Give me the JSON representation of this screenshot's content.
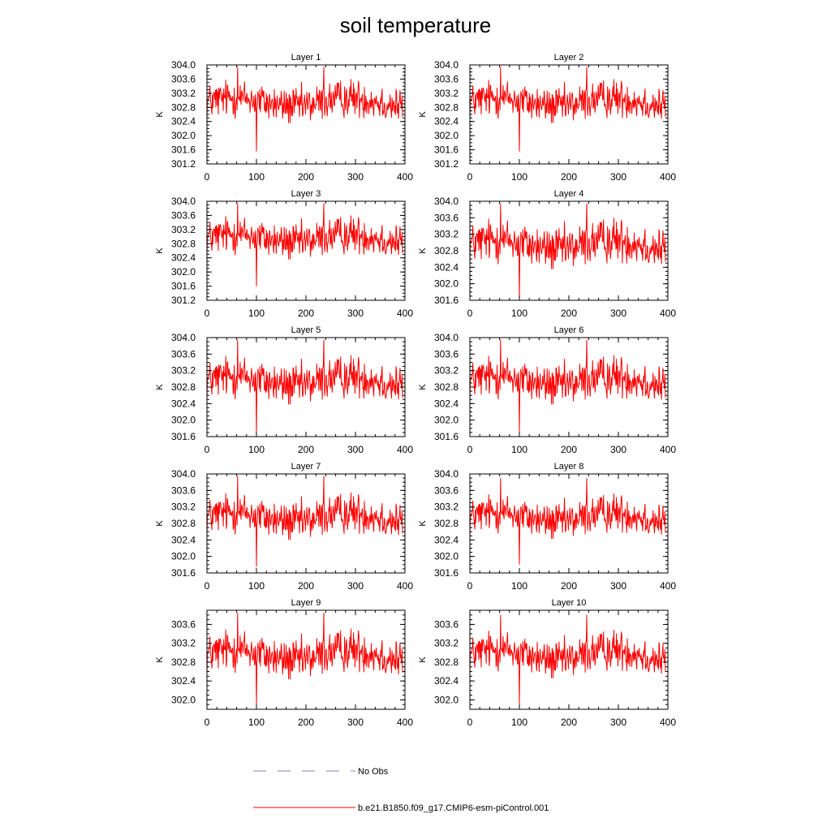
{
  "figure": {
    "title": "soil temperature",
    "legend": {
      "placement": "bottom-center",
      "entries": [
        {
          "label": "No Obs",
          "color": "#8080c0",
          "style": "dashed"
        },
        {
          "label": "b.e21.B1850.f09_g17.CMIP6-esm-piControl.001",
          "color": "#ff0000",
          "style": "solid"
        }
      ]
    }
  },
  "chart_data": [
    {
      "type": "line",
      "title": "Layer 1",
      "ylabel": "K",
      "xlim": [
        0,
        400
      ],
      "ylim": [
        301.2,
        304.0
      ],
      "xticks": [
        0,
        100,
        200,
        300,
        400
      ],
      "yticks": [
        "301.2",
        "301.6",
        "302.0",
        "302.4",
        "302.8",
        "303.2",
        "303.6",
        "304.0"
      ],
      "mean": 302.95,
      "amp": 0.42,
      "min": {
        "x": 100,
        "y": 301.55
      },
      "max": [
        {
          "x": 62,
          "y": 303.95
        },
        {
          "x": 236,
          "y": 303.95
        }
      ],
      "series": [
        {
          "name": "b.e21.B1850.f09_g17.CMIP6-esm-piControl.001",
          "color": "#ff0000"
        }
      ]
    },
    {
      "type": "line",
      "title": "Layer 2",
      "ylabel": "K",
      "xlim": [
        0,
        400
      ],
      "ylim": [
        301.2,
        304.0
      ],
      "xticks": [
        0,
        100,
        200,
        300,
        400
      ],
      "yticks": [
        "301.2",
        "301.6",
        "302.0",
        "302.4",
        "302.8",
        "303.2",
        "303.6",
        "304.0"
      ],
      "mean": 302.95,
      "amp": 0.42,
      "min": {
        "x": 100,
        "y": 301.55
      },
      "max": [
        {
          "x": 62,
          "y": 303.95
        },
        {
          "x": 236,
          "y": 303.95
        }
      ],
      "series": [
        {
          "name": "b.e21.B1850.f09_g17.CMIP6-esm-piControl.001",
          "color": "#ff0000"
        }
      ]
    },
    {
      "type": "line",
      "title": "Layer 3",
      "ylabel": "K",
      "xlim": [
        0,
        400
      ],
      "ylim": [
        301.2,
        304.0
      ],
      "xticks": [
        0,
        100,
        200,
        300,
        400
      ],
      "yticks": [
        "301.2",
        "301.6",
        "302.0",
        "302.4",
        "302.8",
        "303.2",
        "303.6",
        "304.0"
      ],
      "mean": 302.95,
      "amp": 0.42,
      "min": {
        "x": 100,
        "y": 301.6
      },
      "max": [
        {
          "x": 62,
          "y": 303.95
        },
        {
          "x": 236,
          "y": 303.95
        }
      ],
      "series": [
        {
          "name": "b.e21.B1850.f09_g17.CMIP6-esm-piControl.001",
          "color": "#ff0000"
        }
      ]
    },
    {
      "type": "line",
      "title": "Layer 4",
      "ylabel": "K",
      "xlim": [
        0,
        400
      ],
      "ylim": [
        301.6,
        304.0
      ],
      "xticks": [
        0,
        100,
        200,
        300,
        400
      ],
      "yticks": [
        "301.6",
        "302.0",
        "302.4",
        "302.8",
        "303.2",
        "303.6",
        "304.0"
      ],
      "mean": 302.95,
      "amp": 0.42,
      "min": {
        "x": 100,
        "y": 301.6
      },
      "max": [
        {
          "x": 62,
          "y": 303.95
        },
        {
          "x": 236,
          "y": 303.95
        }
      ],
      "series": [
        {
          "name": "b.e21.B1850.f09_g17.CMIP6-esm-piControl.001",
          "color": "#ff0000"
        }
      ]
    },
    {
      "type": "line",
      "title": "Layer 5",
      "ylabel": "K",
      "xlim": [
        0,
        400
      ],
      "ylim": [
        301.6,
        304.0
      ],
      "xticks": [
        0,
        100,
        200,
        300,
        400
      ],
      "yticks": [
        "301.6",
        "302.0",
        "302.4",
        "302.8",
        "303.2",
        "303.6",
        "304.0"
      ],
      "mean": 302.95,
      "amp": 0.4,
      "min": {
        "x": 100,
        "y": 301.65
      },
      "max": [
        {
          "x": 62,
          "y": 303.95
        },
        {
          "x": 236,
          "y": 303.95
        }
      ],
      "series": [
        {
          "name": "b.e21.B1850.f09_g17.CMIP6-esm-piControl.001",
          "color": "#ff0000"
        }
      ]
    },
    {
      "type": "line",
      "title": "Layer 6",
      "ylabel": "K",
      "xlim": [
        0,
        400
      ],
      "ylim": [
        301.6,
        304.0
      ],
      "xticks": [
        0,
        100,
        200,
        300,
        400
      ],
      "yticks": [
        "301.6",
        "302.0",
        "302.4",
        "302.8",
        "303.2",
        "303.6",
        "304.0"
      ],
      "mean": 302.95,
      "amp": 0.4,
      "min": {
        "x": 100,
        "y": 301.7
      },
      "max": [
        {
          "x": 62,
          "y": 303.95
        },
        {
          "x": 236,
          "y": 303.95
        }
      ],
      "series": [
        {
          "name": "b.e21.B1850.f09_g17.CMIP6-esm-piControl.001",
          "color": "#ff0000"
        }
      ]
    },
    {
      "type": "line",
      "title": "Layer 7",
      "ylabel": "K",
      "xlim": [
        0,
        400
      ],
      "ylim": [
        301.6,
        304.0
      ],
      "xticks": [
        0,
        100,
        200,
        300,
        400
      ],
      "yticks": [
        "301.6",
        "302.0",
        "302.4",
        "302.8",
        "303.2",
        "303.6",
        "304.0"
      ],
      "mean": 302.95,
      "amp": 0.38,
      "min": {
        "x": 100,
        "y": 301.75
      },
      "max": [
        {
          "x": 62,
          "y": 303.95
        },
        {
          "x": 236,
          "y": 303.95
        }
      ],
      "series": [
        {
          "name": "b.e21.B1850.f09_g17.CMIP6-esm-piControl.001",
          "color": "#ff0000"
        }
      ]
    },
    {
      "type": "line",
      "title": "Layer 8",
      "ylabel": "K",
      "xlim": [
        0,
        400
      ],
      "ylim": [
        301.6,
        304.0
      ],
      "xticks": [
        0,
        100,
        200,
        300,
        400
      ],
      "yticks": [
        "301.6",
        "302.0",
        "302.4",
        "302.8",
        "303.2",
        "303.6",
        "304.0"
      ],
      "mean": 302.95,
      "amp": 0.36,
      "min": {
        "x": 100,
        "y": 301.8
      },
      "max": [
        {
          "x": 62,
          "y": 303.9
        },
        {
          "x": 236,
          "y": 303.9
        }
      ],
      "series": [
        {
          "name": "b.e21.B1850.f09_g17.CMIP6-esm-piControl.001",
          "color": "#ff0000"
        }
      ]
    },
    {
      "type": "line",
      "title": "Layer 9",
      "ylabel": "K",
      "xlim": [
        0,
        400
      ],
      "ylim": [
        301.8,
        303.9
      ],
      "xticks": [
        0,
        100,
        200,
        300,
        400
      ],
      "yticks": [
        "302.0",
        "302.4",
        "302.8",
        "303.2",
        "303.6"
      ],
      "mean": 302.95,
      "amp": 0.35,
      "min": {
        "x": 100,
        "y": 301.85
      },
      "max": [
        {
          "x": 62,
          "y": 303.85
        },
        {
          "x": 236,
          "y": 303.85
        }
      ],
      "series": [
        {
          "name": "b.e21.B1850.f09_g17.CMIP6-esm-piControl.001",
          "color": "#ff0000"
        }
      ]
    },
    {
      "type": "line",
      "title": "Layer 10",
      "ylabel": "K",
      "xlim": [
        0,
        400
      ],
      "ylim": [
        301.8,
        303.9
      ],
      "xticks": [
        0,
        100,
        200,
        300,
        400
      ],
      "yticks": [
        "302.0",
        "302.4",
        "302.8",
        "303.2",
        "303.6"
      ],
      "mean": 302.95,
      "amp": 0.33,
      "min": {
        "x": 100,
        "y": 301.9
      },
      "max": [
        {
          "x": 62,
          "y": 303.8
        },
        {
          "x": 236,
          "y": 303.8
        }
      ],
      "series": [
        {
          "name": "b.e21.B1850.f09_g17.CMIP6-esm-piControl.001",
          "color": "#ff0000"
        }
      ]
    }
  ]
}
